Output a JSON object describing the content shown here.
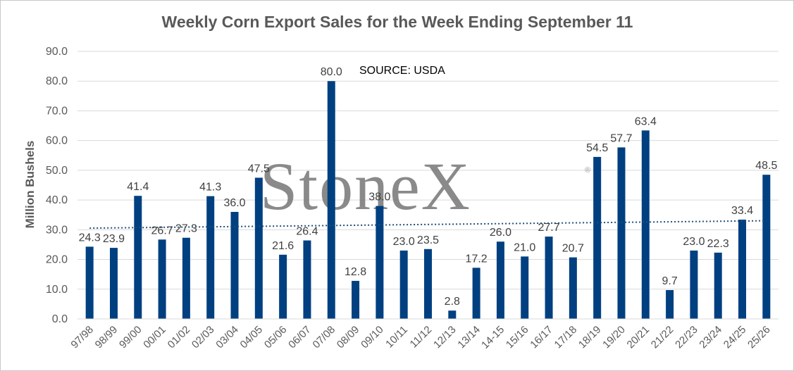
{
  "chart_data": {
    "type": "bar",
    "title": "Weekly Corn Export Sales for the Week Ending September 11",
    "ylabel": "Million Bushels",
    "xlabel": "",
    "ylim": [
      0,
      90
    ],
    "yticks": [
      "0.0",
      "10.0",
      "20.0",
      "30.0",
      "40.0",
      "50.0",
      "60.0",
      "70.0",
      "80.0",
      "90.0"
    ],
    "grid": true,
    "trendline": "dotted linear",
    "annotation": "SOURCE: USDA",
    "watermark": "StoneX",
    "watermark_mark": "®",
    "bar_color": "#004080",
    "trend_color": "#1f4e79",
    "categories": [
      "97/98",
      "98/99",
      "99/00",
      "00/01",
      "01/02",
      "02/03",
      "03/04",
      "04/05",
      "05/06",
      "06/07",
      "07/08",
      "08/09",
      "09/10",
      "10/11",
      "11/12",
      "12/13",
      "13/14",
      "14-15",
      "15/16",
      "16/17",
      "17/18",
      "18/19",
      "19/20",
      "20/21",
      "21/22",
      "22/23",
      "23/24",
      "24/25",
      "25/26"
    ],
    "values": [
      24.3,
      23.9,
      41.4,
      26.7,
      27.3,
      41.3,
      36.0,
      47.5,
      21.6,
      26.4,
      80.0,
      12.8,
      38.0,
      23.0,
      23.5,
      2.8,
      17.2,
      26.0,
      21.0,
      27.7,
      20.7,
      54.5,
      57.7,
      63.4,
      9.7,
      23.0,
      22.3,
      33.4,
      48.5
    ],
    "labels": [
      "24.3",
      "23.9",
      "41.4",
      "26.7",
      "27.3",
      "41.3",
      "36.0",
      "47.5",
      "21.6",
      "26.4",
      "80.0",
      "12.8",
      "38.0",
      "23.0",
      "23.5",
      "2.8",
      "17.2",
      "26.0",
      "21.0",
      "27.7",
      "20.7",
      "54.5",
      "57.7",
      "63.4",
      "9.7",
      "23.0",
      "22.3",
      "33.4",
      "48.5"
    ]
  }
}
